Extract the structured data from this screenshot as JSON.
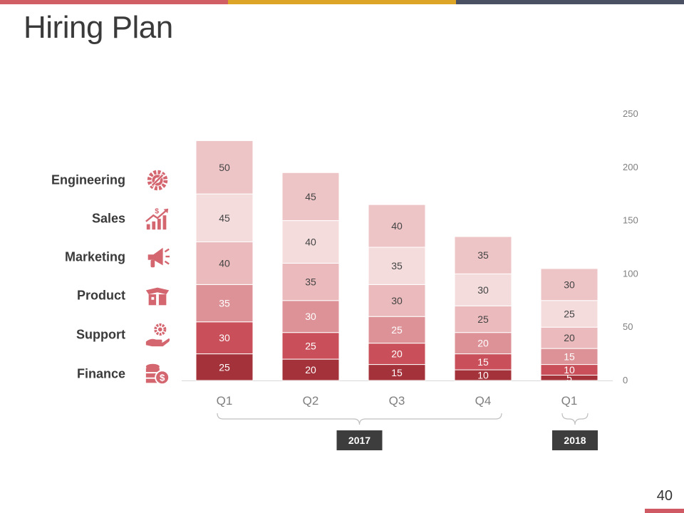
{
  "title": "Hiring Plan",
  "page_number": "40",
  "colors": {
    "top_bar": [
      "#d25e65",
      "#dca527",
      "#4a5163"
    ],
    "segments": [
      "#a4323a",
      "#c9505a",
      "#dc9296",
      "#ebbabc",
      "#f4dcdd",
      "#eec5c7"
    ],
    "icon": "#d46670",
    "year_badge": "#3d3d3d"
  },
  "legend": [
    {
      "label": "Engineering",
      "icon": "gear-wrench-icon"
    },
    {
      "label": "Sales",
      "icon": "sales-growth-icon"
    },
    {
      "label": "Marketing",
      "icon": "megaphone-icon"
    },
    {
      "label": "Product",
      "icon": "product-box-icon"
    },
    {
      "label": "Support",
      "icon": "support-hand-icon"
    },
    {
      "label": "Finance",
      "icon": "coins-dollar-icon"
    }
  ],
  "chart_data": {
    "type": "bar",
    "stacked": true,
    "categories": [
      "Q1",
      "Q2",
      "Q3",
      "Q4",
      "Q1"
    ],
    "series": [
      {
        "name": "Finance",
        "values": [
          25,
          20,
          15,
          10,
          5
        ]
      },
      {
        "name": "Support",
        "values": [
          30,
          25,
          20,
          15,
          10
        ]
      },
      {
        "name": "Product",
        "values": [
          35,
          30,
          25,
          20,
          15
        ]
      },
      {
        "name": "Marketing",
        "values": [
          40,
          35,
          30,
          25,
          20
        ]
      },
      {
        "name": "Sales",
        "values": [
          45,
          40,
          35,
          30,
          25
        ]
      },
      {
        "name": "Engineering",
        "values": [
          50,
          45,
          40,
          35,
          30
        ]
      }
    ],
    "y_ticks": [
      0,
      50,
      100,
      150,
      200,
      250
    ],
    "ylim": [
      0,
      250
    ],
    "y_axis_side": "right",
    "groups": [
      {
        "label": "2017",
        "from": 0,
        "to": 3
      },
      {
        "label": "2018",
        "from": 4,
        "to": 4
      }
    ]
  }
}
